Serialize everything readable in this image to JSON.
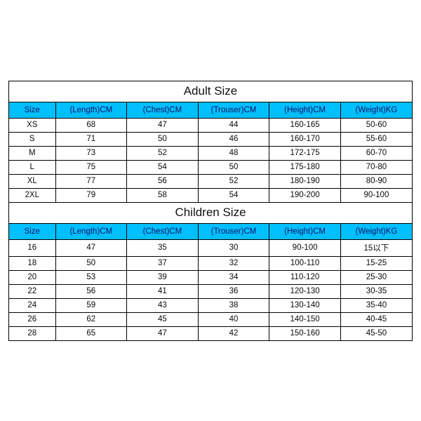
{
  "colors": {
    "header_bg": "#00bfff",
    "header_text": "#08125e",
    "border": "#000000",
    "body_text": "#0a0a0a",
    "background": "#ffffff"
  },
  "typography": {
    "title_fontsize": 17,
    "cell_fontsize": 11.5,
    "font_family": "Helvetica Neue, Arial, sans-serif"
  },
  "layout": {
    "col_size_width_pct": 11.5,
    "col_other_width_pct": 17.7
  },
  "adult": {
    "title": "Adult Size",
    "columns": [
      "Size",
      "(Length)CM",
      "(Chest)CM",
      "(Trouser)CM",
      "(Height)CM",
      "(Weight)KG"
    ],
    "rows": [
      [
        "XS",
        "68",
        "47",
        "44",
        "160-165",
        "50-60"
      ],
      [
        "S",
        "71",
        "50",
        "46",
        "160-170",
        "55-60"
      ],
      [
        "M",
        "73",
        "52",
        "48",
        "172-175",
        "60-70"
      ],
      [
        "L",
        "75",
        "54",
        "50",
        "175-180",
        "70-80"
      ],
      [
        "XL",
        "77",
        "56",
        "52",
        "180-190",
        "80-90"
      ],
      [
        "2XL",
        "79",
        "58",
        "54",
        "190-200",
        "90-100"
      ]
    ]
  },
  "children": {
    "title": "Children Size",
    "columns": [
      "Size",
      "(Length)CM",
      "(Chest)CM",
      "(Trouser)CM",
      "(Height)CM",
      "(Weight)KG"
    ],
    "rows": [
      [
        "16",
        "47",
        "35",
        "30",
        "90-100",
        "15以下"
      ],
      [
        "18",
        "50",
        "37",
        "32",
        "100-110",
        "15-25"
      ],
      [
        "20",
        "53",
        "39",
        "34",
        "110-120",
        "25-30"
      ],
      [
        "22",
        "56",
        "41",
        "36",
        "120-130",
        "30-35"
      ],
      [
        "24",
        "59",
        "43",
        "38",
        "130-140",
        "35-40"
      ],
      [
        "26",
        "62",
        "45",
        "40",
        "140-150",
        "40-45"
      ],
      [
        "28",
        "65",
        "47",
        "42",
        "150-160",
        "45-50"
      ]
    ]
  }
}
